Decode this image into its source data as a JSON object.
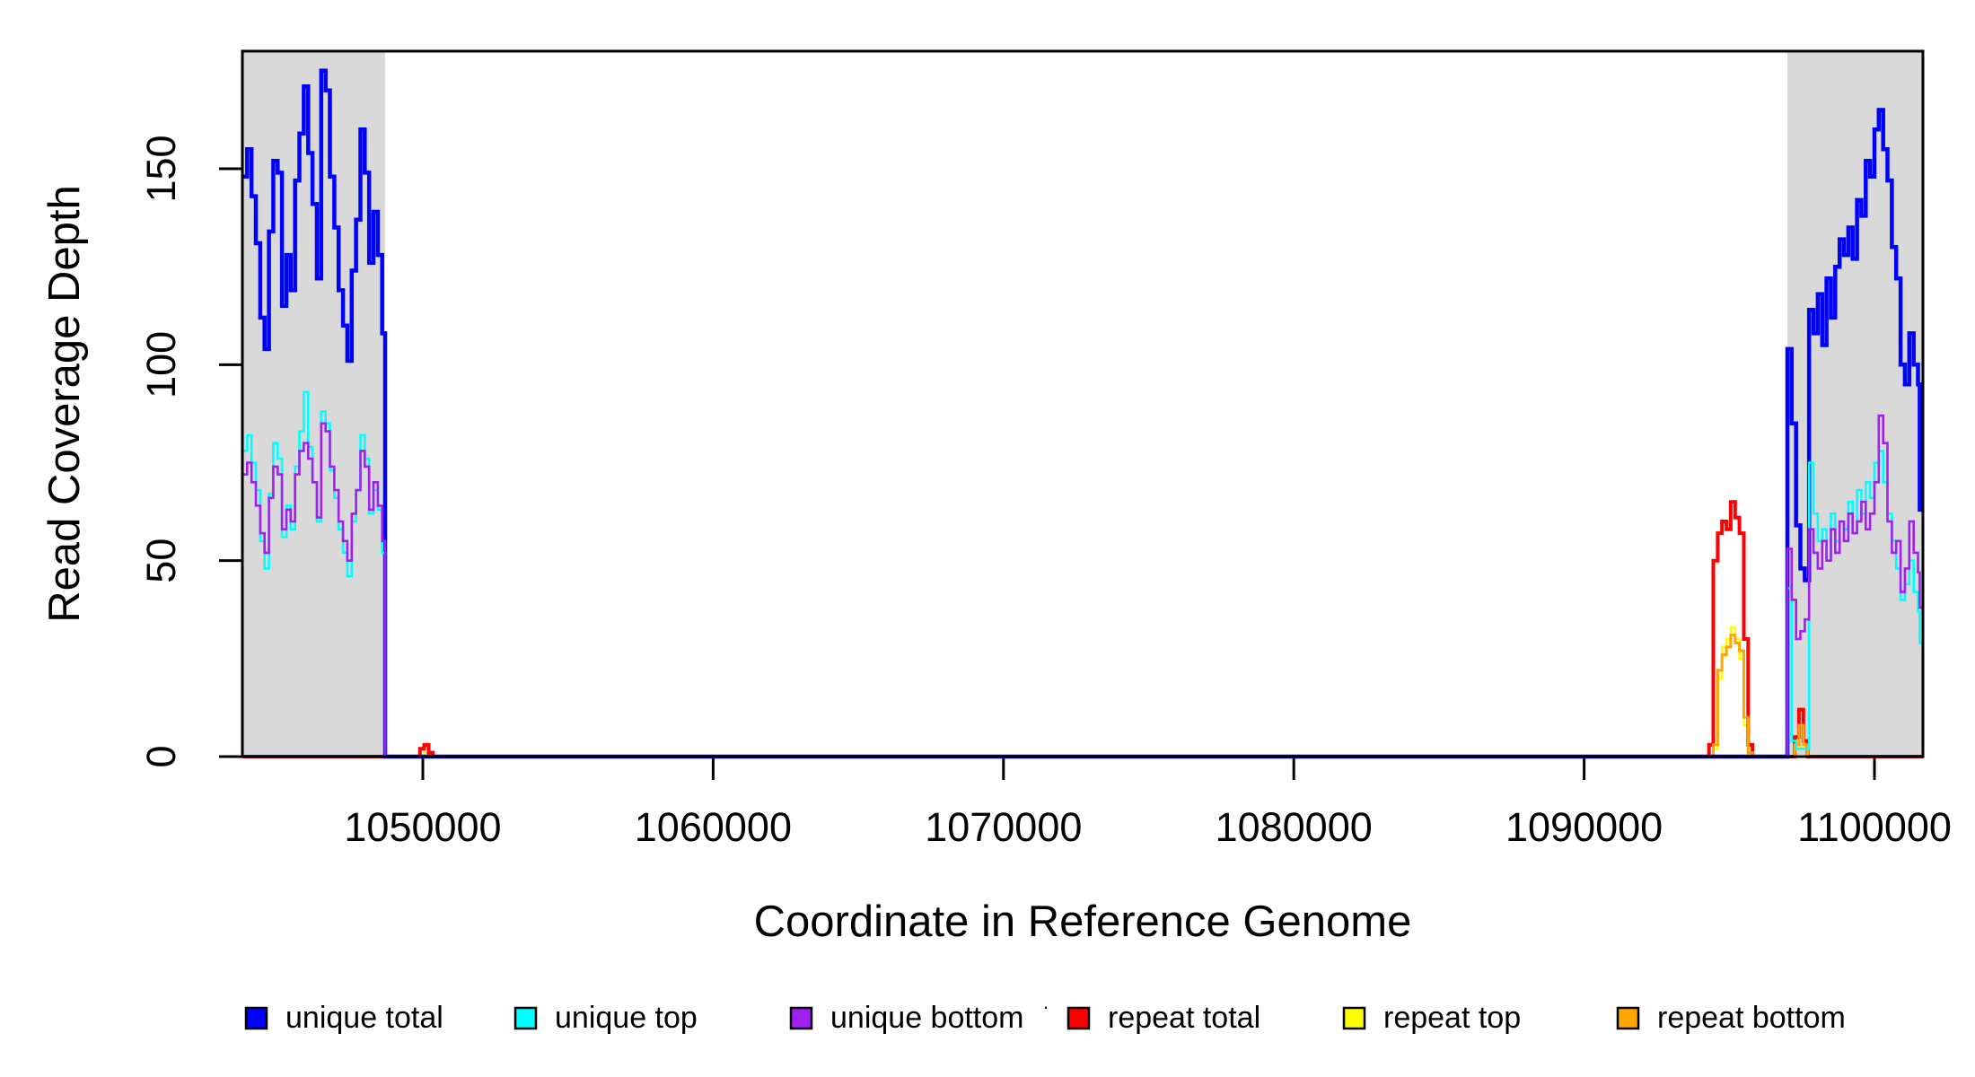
{
  "chart_data": {
    "type": "line",
    "subtype": "step-coverage-plot",
    "title": "",
    "xlabel": "Coordinate in Reference Genome",
    "ylabel": "Read Coverage Depth",
    "xlim": [
      1043785,
      1101670
    ],
    "ylim": [
      0,
      180
    ],
    "grid": false,
    "x_ticks": [
      1050000,
      1060000,
      1070000,
      1080000,
      1090000,
      1100000
    ],
    "x_tick_labels": [
      "1050000",
      "1060000",
      "1070000",
      "1080000",
      "1090000",
      "1100000"
    ],
    "y_ticks": [
      0,
      50,
      100,
      150
    ],
    "y_tick_labels": [
      "0",
      "50",
      "100",
      "150"
    ],
    "shaded_regions": [
      {
        "name": "unique-region-left",
        "from": 1043785,
        "to": 1048700,
        "color": "#D9D9D9"
      },
      {
        "name": "unique-region-right",
        "from": 1097000,
        "to": 1101670,
        "color": "#D9D9D9"
      }
    ],
    "legend_position": "bottom",
    "legend_note_dot": ".",
    "legend": [
      {
        "label": "unique total",
        "color": "#0000FF"
      },
      {
        "label": "unique top",
        "color": "#00FFFF"
      },
      {
        "label": "unique bottom",
        "color": "#A020F0"
      },
      {
        "label": "repeat total",
        "color": "#FF0000"
      },
      {
        "label": "repeat top",
        "color": "#FFFF00"
      },
      {
        "label": "repeat bottom",
        "color": "#FFA500"
      }
    ],
    "series": [
      {
        "name": "repeat top",
        "color": "#FFFF00",
        "width": 2.6,
        "points": [
          [
            1043785,
            0
          ],
          [
            1050050,
            1
          ],
          [
            1050200,
            0
          ],
          [
            1094450,
            2
          ],
          [
            1094600,
            20
          ],
          [
            1094750,
            28
          ],
          [
            1094900,
            30
          ],
          [
            1095050,
            33
          ],
          [
            1095200,
            30
          ],
          [
            1095350,
            25
          ],
          [
            1095500,
            8
          ],
          [
            1095650,
            0
          ],
          [
            1097250,
            2
          ],
          [
            1097400,
            6
          ],
          [
            1097550,
            2
          ],
          [
            1097700,
            0
          ]
        ]
      },
      {
        "name": "repeat total",
        "color": "#FF0000",
        "width": 4,
        "points": [
          [
            1043785,
            0
          ],
          [
            1049900,
            2
          ],
          [
            1050050,
            3
          ],
          [
            1050200,
            1
          ],
          [
            1050350,
            0
          ],
          [
            1094300,
            3
          ],
          [
            1094450,
            50
          ],
          [
            1094600,
            57
          ],
          [
            1094750,
            60
          ],
          [
            1094900,
            58
          ],
          [
            1095050,
            65
          ],
          [
            1095200,
            61
          ],
          [
            1095350,
            57
          ],
          [
            1095500,
            30
          ],
          [
            1095650,
            3
          ],
          [
            1095800,
            0
          ],
          [
            1097250,
            5
          ],
          [
            1097400,
            12
          ],
          [
            1097550,
            4
          ],
          [
            1097700,
            0
          ]
        ]
      },
      {
        "name": "repeat bottom",
        "color": "#FFA500",
        "width": 3,
        "points": [
          [
            1043785,
            0
          ],
          [
            1094450,
            3
          ],
          [
            1094600,
            22
          ],
          [
            1094750,
            26
          ],
          [
            1094900,
            28
          ],
          [
            1095050,
            31
          ],
          [
            1095200,
            29
          ],
          [
            1095350,
            27
          ],
          [
            1095500,
            10
          ],
          [
            1095650,
            1
          ],
          [
            1095800,
            0
          ],
          [
            1097250,
            3
          ],
          [
            1097400,
            8
          ],
          [
            1097550,
            3
          ],
          [
            1097700,
            0
          ]
        ]
      },
      {
        "name": "unique total",
        "color": "#0000FF",
        "width": 4.5,
        "points": [
          [
            1043785,
            148
          ],
          [
            1043950,
            155
          ],
          [
            1044100,
            143
          ],
          [
            1044250,
            131
          ],
          [
            1044400,
            112
          ],
          [
            1044550,
            104
          ],
          [
            1044700,
            134
          ],
          [
            1044850,
            152
          ],
          [
            1045000,
            149
          ],
          [
            1045150,
            115
          ],
          [
            1045300,
            128
          ],
          [
            1045450,
            119
          ],
          [
            1045600,
            147
          ],
          [
            1045750,
            159
          ],
          [
            1045900,
            171
          ],
          [
            1046050,
            154
          ],
          [
            1046200,
            141
          ],
          [
            1046350,
            122
          ],
          [
            1046500,
            175
          ],
          [
            1046650,
            170
          ],
          [
            1046800,
            148
          ],
          [
            1046950,
            135
          ],
          [
            1047100,
            119
          ],
          [
            1047250,
            110
          ],
          [
            1047400,
            101
          ],
          [
            1047550,
            124
          ],
          [
            1047700,
            137
          ],
          [
            1047850,
            160
          ],
          [
            1048000,
            149
          ],
          [
            1048150,
            126
          ],
          [
            1048300,
            139
          ],
          [
            1048450,
            128
          ],
          [
            1048600,
            108
          ],
          [
            1048700,
            0
          ],
          [
            1097000,
            104
          ],
          [
            1097150,
            85
          ],
          [
            1097300,
            59
          ],
          [
            1097450,
            48
          ],
          [
            1097600,
            45
          ],
          [
            1097750,
            114
          ],
          [
            1097900,
            108
          ],
          [
            1098050,
            118
          ],
          [
            1098200,
            105
          ],
          [
            1098350,
            122
          ],
          [
            1098500,
            112
          ],
          [
            1098650,
            125
          ],
          [
            1098800,
            132
          ],
          [
            1098950,
            128
          ],
          [
            1099100,
            135
          ],
          [
            1099250,
            127
          ],
          [
            1099400,
            142
          ],
          [
            1099550,
            138
          ],
          [
            1099700,
            152
          ],
          [
            1099850,
            148
          ],
          [
            1100000,
            160
          ],
          [
            1100150,
            165
          ],
          [
            1100300,
            155
          ],
          [
            1100450,
            147
          ],
          [
            1100600,
            130
          ],
          [
            1100750,
            122
          ],
          [
            1100900,
            100
          ],
          [
            1101050,
            95
          ],
          [
            1101200,
            108
          ],
          [
            1101350,
            100
          ],
          [
            1101500,
            95
          ],
          [
            1101560,
            63
          ]
        ]
      },
      {
        "name": "unique top",
        "color": "#00FFFF",
        "width": 2.6,
        "points": [
          [
            1043785,
            78
          ],
          [
            1043950,
            82
          ],
          [
            1044100,
            75
          ],
          [
            1044250,
            68
          ],
          [
            1044400,
            55
          ],
          [
            1044550,
            48
          ],
          [
            1044700,
            67
          ],
          [
            1044850,
            80
          ],
          [
            1045000,
            76
          ],
          [
            1045150,
            56
          ],
          [
            1045300,
            64
          ],
          [
            1045450,
            58
          ],
          [
            1045600,
            74
          ],
          [
            1045750,
            83
          ],
          [
            1045900,
            93
          ],
          [
            1046050,
            79
          ],
          [
            1046200,
            70
          ],
          [
            1046350,
            60
          ],
          [
            1046500,
            88
          ],
          [
            1046650,
            85
          ],
          [
            1046800,
            73
          ],
          [
            1046950,
            66
          ],
          [
            1047100,
            58
          ],
          [
            1047250,
            52
          ],
          [
            1047400,
            46
          ],
          [
            1047550,
            60
          ],
          [
            1047700,
            68
          ],
          [
            1047850,
            82
          ],
          [
            1048000,
            76
          ],
          [
            1048150,
            62
          ],
          [
            1048300,
            68
          ],
          [
            1048450,
            63
          ],
          [
            1048600,
            52
          ],
          [
            1048700,
            0
          ],
          [
            1097000,
            43
          ],
          [
            1097150,
            4
          ],
          [
            1097300,
            2
          ],
          [
            1097450,
            2
          ],
          [
            1097600,
            2
          ],
          [
            1097750,
            75
          ],
          [
            1097900,
            62
          ],
          [
            1098050,
            55
          ],
          [
            1098200,
            58
          ],
          [
            1098350,
            50
          ],
          [
            1098500,
            62
          ],
          [
            1098650,
            55
          ],
          [
            1098800,
            60
          ],
          [
            1098950,
            58
          ],
          [
            1099100,
            65
          ],
          [
            1099250,
            57
          ],
          [
            1099400,
            68
          ],
          [
            1099550,
            62
          ],
          [
            1099700,
            70
          ],
          [
            1099850,
            66
          ],
          [
            1100000,
            75
          ],
          [
            1100150,
            78
          ],
          [
            1100300,
            70
          ],
          [
            1100450,
            62
          ],
          [
            1100600,
            55
          ],
          [
            1100750,
            48
          ],
          [
            1100900,
            40
          ],
          [
            1101050,
            44
          ],
          [
            1101200,
            50
          ],
          [
            1101350,
            42
          ],
          [
            1101500,
            37
          ],
          [
            1101560,
            29
          ]
        ]
      },
      {
        "name": "unique bottom",
        "color": "#A020F0",
        "width": 2.6,
        "points": [
          [
            1043785,
            72
          ],
          [
            1043950,
            75
          ],
          [
            1044100,
            70
          ],
          [
            1044250,
            64
          ],
          [
            1044400,
            57
          ],
          [
            1044550,
            52
          ],
          [
            1044700,
            66
          ],
          [
            1044850,
            74
          ],
          [
            1045000,
            72
          ],
          [
            1045150,
            58
          ],
          [
            1045300,
            63
          ],
          [
            1045450,
            60
          ],
          [
            1045600,
            72
          ],
          [
            1045750,
            78
          ],
          [
            1045900,
            80
          ],
          [
            1046050,
            76
          ],
          [
            1046200,
            70
          ],
          [
            1046350,
            61
          ],
          [
            1046500,
            85
          ],
          [
            1046650,
            83
          ],
          [
            1046800,
            74
          ],
          [
            1046950,
            68
          ],
          [
            1047100,
            60
          ],
          [
            1047250,
            55
          ],
          [
            1047400,
            50
          ],
          [
            1047550,
            62
          ],
          [
            1047700,
            68
          ],
          [
            1047850,
            78
          ],
          [
            1048000,
            74
          ],
          [
            1048150,
            63
          ],
          [
            1048300,
            70
          ],
          [
            1048450,
            64
          ],
          [
            1048600,
            55
          ],
          [
            1048700,
            0
          ],
          [
            1097000,
            53
          ],
          [
            1097150,
            40
          ],
          [
            1097300,
            30
          ],
          [
            1097450,
            32
          ],
          [
            1097600,
            35
          ],
          [
            1097750,
            58
          ],
          [
            1097900,
            52
          ],
          [
            1098050,
            48
          ],
          [
            1098200,
            55
          ],
          [
            1098350,
            50
          ],
          [
            1098500,
            58
          ],
          [
            1098650,
            52
          ],
          [
            1098800,
            60
          ],
          [
            1098950,
            55
          ],
          [
            1099100,
            62
          ],
          [
            1099250,
            57
          ],
          [
            1099400,
            60
          ],
          [
            1099550,
            65
          ],
          [
            1099700,
            58
          ],
          [
            1099850,
            62
          ],
          [
            1100000,
            70
          ],
          [
            1100150,
            87
          ],
          [
            1100300,
            80
          ],
          [
            1100450,
            60
          ],
          [
            1100600,
            52
          ],
          [
            1100750,
            55
          ],
          [
            1100900,
            42
          ],
          [
            1101050,
            48
          ],
          [
            1101200,
            60
          ],
          [
            1101350,
            52
          ],
          [
            1101500,
            47
          ],
          [
            1101560,
            38
          ]
        ]
      }
    ],
    "colors": {
      "background": "#FFFFFF",
      "shade": "#D9D9D9",
      "axis": "#000000"
    }
  }
}
